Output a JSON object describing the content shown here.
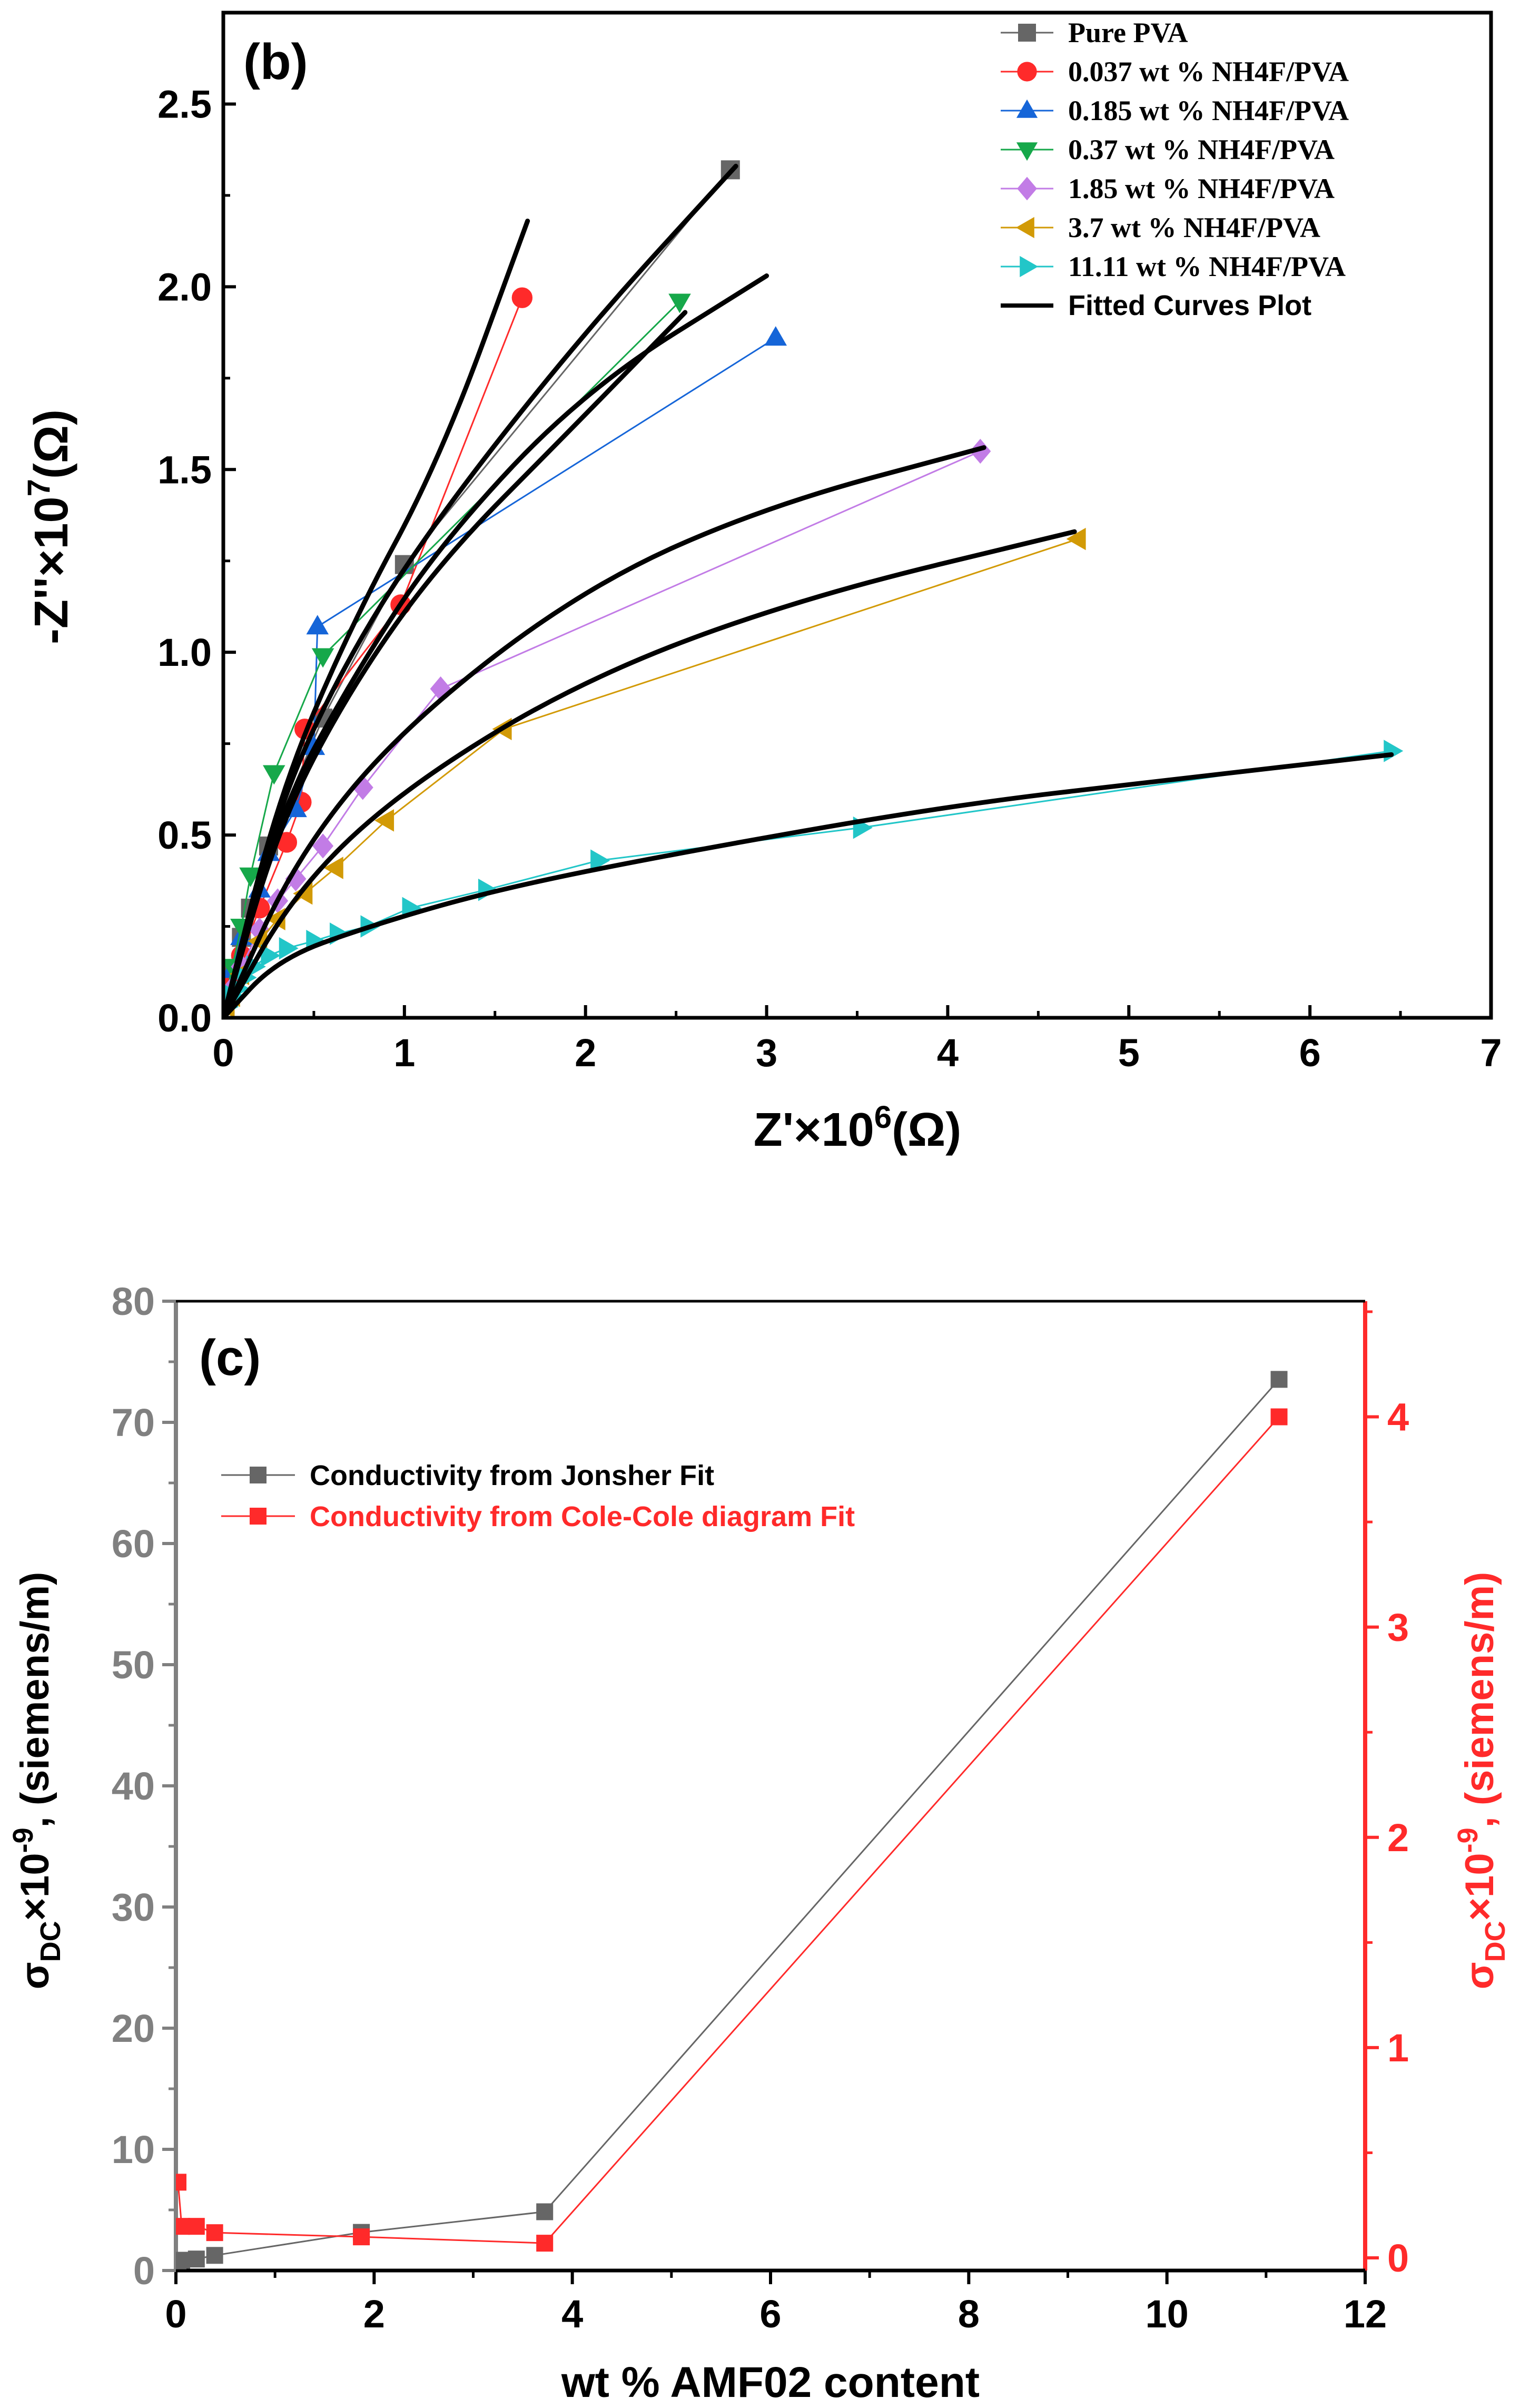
{
  "chart_data": [
    {
      "type": "scatter",
      "panel_label": "(b)",
      "xlabel": "Z'×10⁶(Ω)",
      "ylabel": "-Z''×10⁷(Ω)",
      "xlim": [
        0,
        7
      ],
      "ylim": [
        0,
        2.75
      ],
      "xticks": [
        0,
        1,
        2,
        3,
        4,
        5,
        6,
        7
      ],
      "yticks": [
        0.0,
        0.5,
        1.0,
        1.5,
        2.0,
        2.5
      ],
      "ytick_labels": [
        "0.0",
        "0.5",
        "1.0",
        "1.5",
        "2.0",
        "2.5"
      ],
      "legend_position": "top-right",
      "series": [
        {
          "name": "Pure PVA",
          "color": "#666666",
          "marker": "square",
          "points": [
            [
              0.02,
              0.06
            ],
            [
              0.05,
              0.12
            ],
            [
              0.1,
              0.22
            ],
            [
              0.15,
              0.3
            ],
            [
              0.25,
              0.47
            ],
            [
              0.55,
              0.82
            ],
            [
              1.0,
              1.24
            ],
            [
              2.8,
              2.32
            ]
          ]
        },
        {
          "name": "0.037 wt % NH4F/PVA",
          "color": "#ff2a2a",
          "marker": "circle",
          "points": [
            [
              0.02,
              0.05
            ],
            [
              0.05,
              0.1
            ],
            [
              0.1,
              0.17
            ],
            [
              0.2,
              0.3
            ],
            [
              0.35,
              0.48
            ],
            [
              0.43,
              0.59
            ],
            [
              0.45,
              0.79
            ],
            [
              0.98,
              1.13
            ],
            [
              1.65,
              1.97
            ]
          ]
        },
        {
          "name": "0.185 wt % NH4F/PVA",
          "color": "#1565d8",
          "marker": "triangle-up",
          "points": [
            [
              0.02,
              0.06
            ],
            [
              0.05,
              0.13
            ],
            [
              0.1,
              0.22
            ],
            [
              0.2,
              0.35
            ],
            [
              0.25,
              0.45
            ],
            [
              0.4,
              0.57
            ],
            [
              0.5,
              0.74
            ],
            [
              0.52,
              1.07
            ],
            [
              3.05,
              1.86
            ]
          ]
        },
        {
          "name": "0.37 wt % NH4F/PVA",
          "color": "#16a84a",
          "marker": "triangle-down",
          "points": [
            [
              0.02,
              0.07
            ],
            [
              0.05,
              0.14
            ],
            [
              0.1,
              0.25
            ],
            [
              0.15,
              0.39
            ],
            [
              0.28,
              0.67
            ],
            [
              0.55,
              0.99
            ],
            [
              2.52,
              1.96
            ]
          ]
        },
        {
          "name": "1.85 wt % NH4F/PVA",
          "color": "#c27ce6",
          "marker": "diamond",
          "points": [
            [
              0.02,
              0.04
            ],
            [
              0.05,
              0.08
            ],
            [
              0.1,
              0.14
            ],
            [
              0.2,
              0.24
            ],
            [
              0.3,
              0.32
            ],
            [
              0.4,
              0.38
            ],
            [
              0.55,
              0.47
            ],
            [
              0.77,
              0.63
            ],
            [
              1.2,
              0.9
            ],
            [
              4.18,
              1.55
            ]
          ]
        },
        {
          "name": "3.7 wt % NH4F/PVA",
          "color": "#d29a06",
          "marker": "triangle-left",
          "points": [
            [
              0.02,
              0.03
            ],
            [
              0.05,
              0.06
            ],
            [
              0.1,
              0.12
            ],
            [
              0.2,
              0.21
            ],
            [
              0.3,
              0.27
            ],
            [
              0.45,
              0.34
            ],
            [
              0.62,
              0.41
            ],
            [
              0.9,
              0.54
            ],
            [
              1.55,
              0.79
            ],
            [
              4.72,
              1.31
            ]
          ]
        },
        {
          "name": "11.11 wt % NH4F/PVA",
          "color": "#22c6c8",
          "marker": "triangle-right",
          "points": [
            [
              0.02,
              0.03
            ],
            [
              0.05,
              0.06
            ],
            [
              0.08,
              0.08
            ],
            [
              0.12,
              0.11
            ],
            [
              0.17,
              0.14
            ],
            [
              0.25,
              0.17
            ],
            [
              0.35,
              0.19
            ],
            [
              0.5,
              0.21
            ],
            [
              0.63,
              0.23
            ],
            [
              0.8,
              0.25
            ],
            [
              1.03,
              0.3
            ],
            [
              1.45,
              0.35
            ],
            [
              2.07,
              0.43
            ],
            [
              3.52,
              0.52
            ],
            [
              6.45,
              0.73
            ]
          ]
        }
      ],
      "fitted_curves": {
        "name": "Fitted Curves Plot",
        "color": "#000000",
        "curves": [
          [
            [
              0,
              0
            ],
            [
              0.3,
              0.6
            ],
            [
              0.7,
              1.07
            ],
            [
              1.2,
              1.53
            ],
            [
              1.68,
              2.18
            ]
          ],
          [
            [
              0,
              0
            ],
            [
              0.3,
              0.58
            ],
            [
              0.7,
              1.0
            ],
            [
              1.2,
              1.38
            ],
            [
              2.0,
              1.88
            ],
            [
              2.83,
              2.33
            ]
          ],
          [
            [
              0,
              0
            ],
            [
              0.3,
              0.55
            ],
            [
              0.7,
              0.92
            ],
            [
              1.2,
              1.3
            ],
            [
              2.0,
              1.72
            ],
            [
              3.0,
              2.03
            ]
          ],
          [
            [
              0,
              0
            ],
            [
              0.3,
              0.52
            ],
            [
              0.7,
              0.9
            ],
            [
              1.2,
              1.25
            ],
            [
              1.9,
              1.6
            ],
            [
              2.55,
              1.93
            ]
          ],
          [
            [
              0,
              0
            ],
            [
              0.4,
              0.44
            ],
            [
              1.0,
              0.8
            ],
            [
              2.0,
              1.18
            ],
            [
              3.0,
              1.4
            ],
            [
              4.2,
              1.56
            ]
          ],
          [
            [
              0,
              0
            ],
            [
              0.4,
              0.35
            ],
            [
              1.0,
              0.63
            ],
            [
              2.0,
              0.93
            ],
            [
              3.2,
              1.15
            ],
            [
              4.7,
              1.33
            ]
          ],
          [
            [
              0,
              0
            ],
            [
              0.3,
              0.16
            ],
            [
              0.8,
              0.25
            ],
            [
              1.5,
              0.35
            ],
            [
              2.5,
              0.45
            ],
            [
              4.0,
              0.58
            ],
            [
              5.2,
              0.65
            ],
            [
              6.45,
              0.72
            ]
          ]
        ]
      },
      "sup_10": "6",
      "sup_10y": "7"
    },
    {
      "type": "line",
      "panel_label": "(c)",
      "xlabel": "wt % AMF02 content",
      "ylabel_left": "σDC×10-9, (siemens/m)",
      "ylabel_right": "σDC×10-9, (siemens/m)",
      "ylabel_parts": {
        "sigma": "σ",
        "sub": "DC",
        "mult": "×10",
        "sup": "-9",
        "rest": ", (siemens/m)"
      },
      "xlim": [
        0,
        12
      ],
      "ylim_left": [
        0,
        80
      ],
      "ylim_right": [
        -0.06,
        4.55
      ],
      "xticks": [
        0,
        2,
        4,
        6,
        8,
        10,
        12
      ],
      "yticks_left": [
        0,
        10,
        20,
        30,
        40,
        50,
        60,
        70,
        80
      ],
      "yticks_right": [
        0,
        1,
        2,
        3,
        4
      ],
      "legend_position": "top-left",
      "series": [
        {
          "name": "Conductivity from Jonsher Fit",
          "color": "#666666",
          "axis": "left",
          "x": [
            0,
            0.037,
            0.185,
            0.37,
            1.85,
            3.7,
            11.11
          ],
          "y": [
            0.45,
            0.5,
            0.6,
            0.9,
            2.8,
            4.5,
            73.2
          ]
        },
        {
          "name": "Conductivity from Cole-Cole diagram Fit",
          "color": "#ff2a2a",
          "axis": "right",
          "x": [
            0,
            0.037,
            0.185,
            0.37,
            1.85,
            3.7,
            11.11
          ],
          "y": [
            0.36,
            0.15,
            0.15,
            0.12,
            0.1,
            0.07,
            4.0
          ]
        }
      ]
    }
  ]
}
